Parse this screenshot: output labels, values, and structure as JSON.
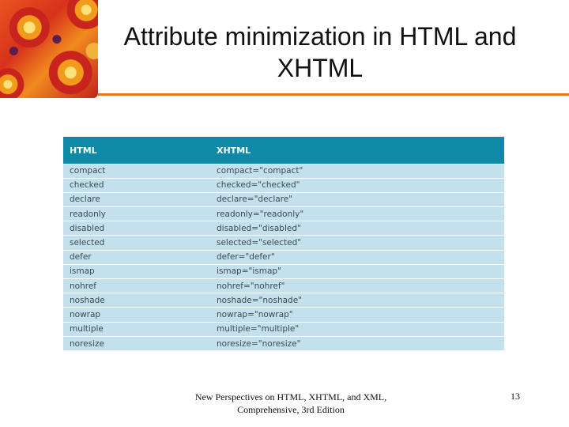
{
  "slide": {
    "title": "Attribute minimization in HTML and XHTML",
    "footer": "New Perspectives on HTML, XHTML, and XML, Comprehensive, 3rd Edition",
    "page_number": "13"
  },
  "table": {
    "headers": [
      "HTML",
      "XHTML"
    ],
    "rows": [
      [
        "compact",
        "compact=\"compact\""
      ],
      [
        "checked",
        "checked=\"checked\""
      ],
      [
        "declare",
        "declare=\"declare\""
      ],
      [
        "readonly",
        "readonly=\"readonly\""
      ],
      [
        "disabled",
        "disabled=\"disabled\""
      ],
      [
        "selected",
        "selected=\"selected\""
      ],
      [
        "defer",
        "defer=\"defer\""
      ],
      [
        "ismap",
        "ismap=\"ismap\""
      ],
      [
        "nohref",
        "nohref=\"nohref\""
      ],
      [
        "noshade",
        "noshade=\"noshade\""
      ],
      [
        "nowrap",
        "nowrap=\"nowrap\""
      ],
      [
        "multiple",
        "multiple=\"multiple\""
      ],
      [
        "noresize",
        "noresize=\"noresize\""
      ]
    ]
  },
  "colors": {
    "header_bg": "#0f8aa6",
    "row_bg": "#c3e1ec",
    "accent_rule": "#e07a24"
  },
  "icons": {
    "corner": "flower-photo"
  }
}
